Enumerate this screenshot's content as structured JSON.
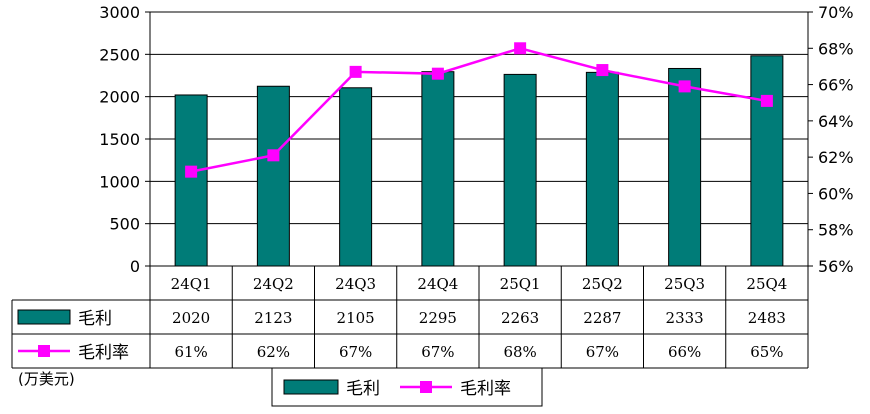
{
  "chart_data": {
    "type": "bar",
    "categories": [
      "24Q1",
      "24Q2",
      "24Q3",
      "24Q4",
      "25Q1",
      "25Q2",
      "25Q3",
      "25Q4"
    ],
    "series": [
      {
        "name": "毛利",
        "type": "bar",
        "axis": "left",
        "values": [
          2020,
          2123,
          2105,
          2295,
          2263,
          2287,
          2333,
          2483
        ],
        "color": "#007C78"
      },
      {
        "name": "毛利率",
        "type": "line",
        "axis": "right",
        "values": [
          61.2,
          62.1,
          66.7,
          66.6,
          68.0,
          66.8,
          65.9,
          65.1
        ],
        "labels": [
          "61%",
          "62%",
          "67%",
          "67%",
          "68%",
          "67%",
          "66%",
          "65%"
        ],
        "color": "#FF00FF"
      }
    ],
    "y_left": {
      "min": 0,
      "max": 3000,
      "step": 500,
      "ticks": [
        "0",
        "500",
        "1000",
        "1500",
        "2000",
        "2500",
        "3000"
      ]
    },
    "y_right": {
      "min": 56,
      "max": 70,
      "step": 2,
      "ticks": [
        "56%",
        "58%",
        "60%",
        "62%",
        "64%",
        "66%",
        "68%",
        "70%"
      ]
    },
    "data_table": {
      "rows": [
        {
          "label": "毛利",
          "cells": [
            "2020",
            "2123",
            "2105",
            "2295",
            "2263",
            "2287",
            "2333",
            "2483"
          ]
        },
        {
          "label": "毛利率",
          "cells": [
            "61%",
            "62%",
            "67%",
            "67%",
            "68%",
            "67%",
            "66%",
            "65%"
          ]
        }
      ]
    },
    "unit": "(万美元)",
    "legend": {
      "position": "bottom",
      "items": [
        "毛利",
        "毛利率"
      ]
    },
    "grid": true
  }
}
